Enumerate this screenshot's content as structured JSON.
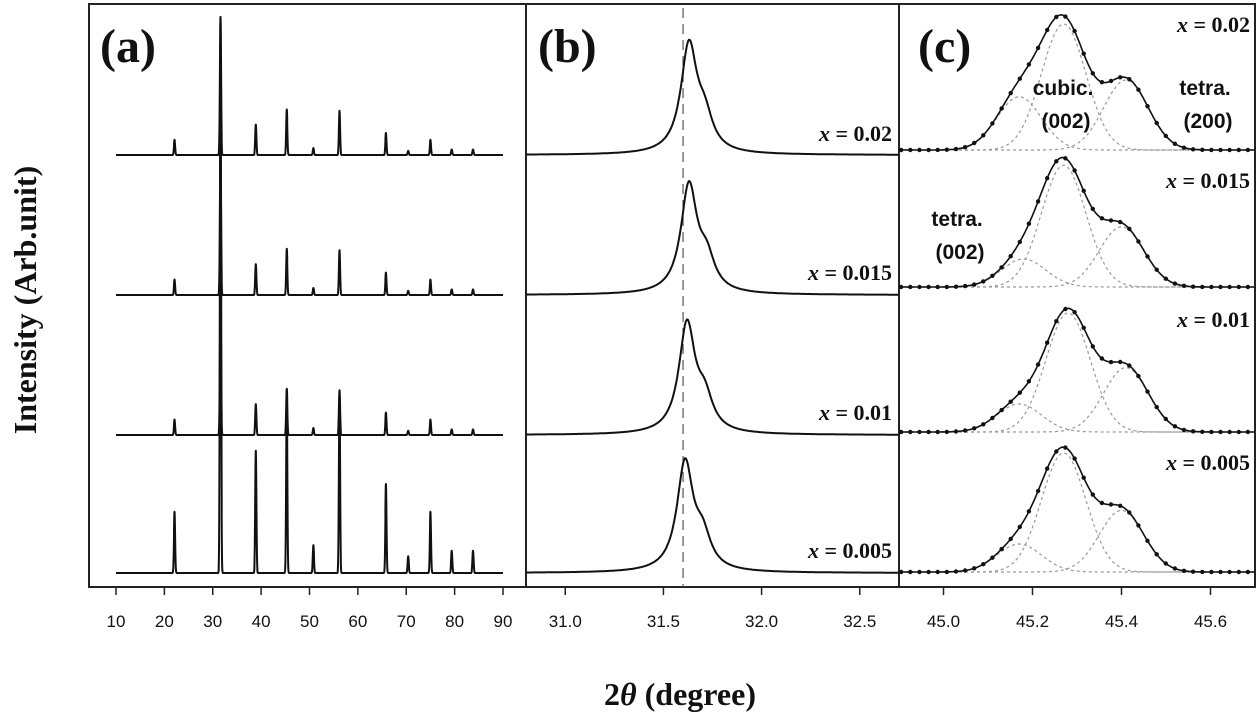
{
  "figure": {
    "y_axis_title": "Intensity (Arb.unit)",
    "x_axis_title": {
      "symbol_prefix": "2",
      "symbol": "θ",
      "suffix": " (degree)"
    }
  },
  "chart_data": [
    {
      "id": "a",
      "panel_label": "(a)",
      "type": "line",
      "x_ticks": [
        "10",
        "20",
        "30",
        "40",
        "50",
        "60",
        "70",
        "80",
        "90"
      ],
      "xlim": [
        10,
        90
      ],
      "stack_order_top_to_bottom": [
        "x = 0.02",
        "x = 0.015",
        "x = 0.01",
        "x = 0.005"
      ],
      "peaks_x": [
        22.1,
        31.6,
        38.9,
        45.3,
        50.8,
        56.2,
        65.8,
        70.4,
        75.0,
        79.4,
        83.8
      ],
      "peaks_relative_height": [
        0.11,
        1.0,
        0.22,
        0.33,
        0.05,
        0.32,
        0.16,
        0.03,
        0.11,
        0.04,
        0.04
      ]
    },
    {
      "id": "b",
      "panel_label": "(b)",
      "type": "line",
      "x_ticks": [
        "31.0",
        "31.5",
        "32.0",
        "32.5"
      ],
      "xlim": [
        30.8,
        32.7
      ],
      "reference_line_x": 31.6,
      "series": [
        {
          "name": "x = 0.02",
          "label_var": "x",
          "label_value": " = 0.02",
          "peak_x": 31.63,
          "shoulder_x": 31.71
        },
        {
          "name": "x = 0.015",
          "label_var": "x",
          "label_value": " = 0.015",
          "peak_x": 31.63,
          "shoulder_x": 31.72
        },
        {
          "name": "x = 0.01",
          "label_var": "x",
          "label_value": " = 0.01",
          "peak_x": 31.62,
          "shoulder_x": 31.71
        },
        {
          "name": "x = 0.005",
          "label_var": "x",
          "label_value": " = 0.005",
          "peak_x": 31.61,
          "shoulder_x": 31.7
        }
      ]
    },
    {
      "id": "c",
      "panel_label": "(c)",
      "type": "line",
      "x_ticks": [
        "45.0",
        "45.2",
        "45.4",
        "45.6"
      ],
      "xlim": [
        44.9,
        45.7
      ],
      "series": [
        {
          "name": "x = 0.02",
          "label_var": "x",
          "label_value": " = 0.02",
          "components": [
            {
              "center": 45.17,
              "height": 0.38
            },
            {
              "center": 45.27,
              "height": 0.9
            },
            {
              "center": 45.41,
              "height": 0.5
            }
          ]
        },
        {
          "name": "x = 0.015",
          "label_var": "x",
          "label_value": " = 0.015",
          "components": [
            {
              "center": 45.18,
              "height": 0.2
            },
            {
              "center": 45.27,
              "height": 0.87
            },
            {
              "center": 45.4,
              "height": 0.43
            }
          ]
        },
        {
          "name": "x = 0.01",
          "label_var": "x",
          "label_value": " = 0.01",
          "components": [
            {
              "center": 45.17,
              "height": 0.2
            },
            {
              "center": 45.28,
              "height": 0.85
            },
            {
              "center": 45.41,
              "height": 0.46
            }
          ]
        },
        {
          "name": "x = 0.005",
          "label_var": "x",
          "label_value": " = 0.005",
          "components": [
            {
              "center": 45.17,
              "height": 0.2
            },
            {
              "center": 45.27,
              "height": 0.85
            },
            {
              "center": 45.4,
              "height": 0.44
            }
          ]
        }
      ],
      "annotations": [
        {
          "line1": "cubic.",
          "line2": "(002)"
        },
        {
          "line1": "tetra.",
          "line2": "(200)"
        },
        {
          "line1": "tetra.",
          "line2": "(002)"
        }
      ]
    }
  ]
}
